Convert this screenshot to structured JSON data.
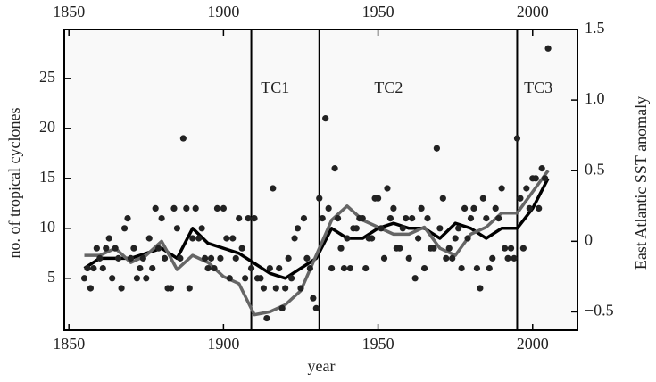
{
  "chart_data": {
    "type": "scatter",
    "xlabel": "year",
    "ylabel": "no. of tropical cyclones",
    "y2label": "East Atlantic SST anomaly",
    "xlim": [
      1848.5,
      2014.5
    ],
    "xticks": [
      1850,
      1900,
      1950,
      2000
    ],
    "ylim": [
      -0.2,
      29.9
    ],
    "yticks": [
      5,
      10,
      15,
      20,
      25
    ],
    "y2lim": [
      -0.63,
      1.5
    ],
    "y2ticks": [
      {
        "value": -0.5,
        "label": "−0.5"
      },
      0,
      0.5,
      {
        "value": 1,
        "label": "1.0"
      },
      1.5
    ],
    "points": {
      "color": "#222222",
      "x": [
        1855,
        1856,
        1857,
        1858,
        1859,
        1860,
        1861,
        1862,
        1863,
        1864,
        1865,
        1866,
        1867,
        1868,
        1869,
        1870,
        1871,
        1872,
        1873,
        1874,
        1875,
        1876,
        1877,
        1878,
        1879,
        1880,
        1881,
        1882,
        1883,
        1884,
        1885,
        1886,
        1887,
        1888,
        1889,
        1890,
        1891,
        1892,
        1893,
        1894,
        1895,
        1896,
        1897,
        1898,
        1899,
        1900,
        1901,
        1902,
        1903,
        1904,
        1905,
        1906,
        1907,
        1908,
        1909,
        1910,
        1911,
        1912,
        1913,
        1914,
        1915,
        1916,
        1917,
        1918,
        1919,
        1920,
        1921,
        1922,
        1923,
        1924,
        1925,
        1926,
        1927,
        1928,
        1929,
        1930,
        1931,
        1932,
        1933,
        1934,
        1935,
        1936,
        1937,
        1938,
        1939,
        1940,
        1941,
        1942,
        1943,
        1944,
        1945,
        1946,
        1947,
        1948,
        1949,
        1950,
        1951,
        1952,
        1953,
        1954,
        1955,
        1956,
        1957,
        1958,
        1959,
        1960,
        1961,
        1962,
        1963,
        1964,
        1965,
        1966,
        1967,
        1968,
        1969,
        1970,
        1971,
        1972,
        1973,
        1974,
        1975,
        1976,
        1977,
        1978,
        1979,
        1980,
        1981,
        1982,
        1983,
        1984,
        1985,
        1986,
        1987,
        1988,
        1989,
        1990,
        1991,
        1992,
        1993,
        1994,
        1995,
        1996,
        1997,
        1998,
        1999,
        2000,
        2001,
        2002,
        2003,
        2004,
        2005
      ],
      "values": [
        5,
        6,
        4,
        6,
        8,
        7,
        6,
        8,
        9,
        5,
        8,
        7,
        4,
        10,
        11,
        7,
        8,
        5,
        6,
        7,
        5,
        9,
        6,
        12,
        8,
        11,
        7,
        4,
        4,
        12,
        10,
        7,
        19,
        12,
        4,
        9,
        12,
        9,
        10,
        7,
        6,
        7,
        6,
        12,
        7,
        12,
        9,
        5,
        9,
        7,
        11,
        8,
        5,
        11,
        6,
        11,
        5,
        5,
        4,
        1,
        6,
        14,
        4,
        6,
        2,
        4,
        7,
        5,
        9,
        10,
        4,
        11,
        7,
        6,
        3,
        2,
        13,
        11,
        21,
        12,
        6,
        16,
        11,
        8,
        6,
        9,
        6,
        10,
        10,
        11,
        11,
        6,
        9,
        9,
        13,
        13,
        10,
        7,
        14,
        11,
        12,
        8,
        8,
        10,
        11,
        7,
        11,
        5,
        9,
        12,
        6,
        11,
        8,
        8,
        18,
        10,
        13,
        7,
        8,
        7,
        9,
        10,
        6,
        12,
        9,
        11,
        12,
        6,
        4,
        13,
        11,
        6,
        7,
        12,
        11,
        14,
        8,
        7,
        8,
        7,
        19,
        13,
        8,
        14,
        12,
        15,
        15,
        12,
        16,
        15,
        28
      ]
    },
    "series": [
      {
        "color": "#000000",
        "axis": "y",
        "x": [
          1855,
          1860,
          1865,
          1870,
          1875,
          1880,
          1885,
          1890,
          1895,
          1900,
          1905,
          1910,
          1915,
          1920,
          1925,
          1930,
          1935,
          1940,
          1945,
          1950,
          1955,
          1960,
          1965,
          1970,
          1975,
          1980,
          1985,
          1990,
          1995,
          2000,
          2005
        ],
        "values": [
          6,
          7,
          7,
          7,
          7.5,
          8,
          7,
          10,
          8.5,
          8,
          7.5,
          6.5,
          5.5,
          5,
          6,
          7,
          10,
          9,
          9,
          10,
          10.5,
          10,
          10,
          9,
          10.5,
          10,
          9,
          10,
          10,
          12,
          15
        ]
      },
      {
        "color": "#666666",
        "axis": "y2",
        "x": [
          1855,
          1860,
          1865,
          1870,
          1875,
          1880,
          1885,
          1890,
          1895,
          1900,
          1905,
          1910,
          1915,
          1920,
          1925,
          1930,
          1935,
          1940,
          1945,
          1950,
          1955,
          1960,
          1965,
          1970,
          1975,
          1980,
          1985,
          1990,
          1995,
          2000,
          2005
        ],
        "values": [
          -0.1,
          -0.1,
          -0.05,
          -0.15,
          -0.1,
          0,
          -0.2,
          -0.1,
          -0.15,
          -0.25,
          -0.3,
          -0.52,
          -0.5,
          -0.45,
          -0.35,
          -0.1,
          0.15,
          0.25,
          0.15,
          0.1,
          0.05,
          0.05,
          0.1,
          -0.05,
          -0.1,
          0.05,
          0.1,
          0.2,
          0.2,
          0.35,
          0.5
        ]
      }
    ],
    "periods": [
      {
        "label": "TC1",
        "x": 1909
      },
      {
        "label": "TC2",
        "x": 1931
      },
      {
        "label": "TC3",
        "x": 1995
      }
    ]
  }
}
